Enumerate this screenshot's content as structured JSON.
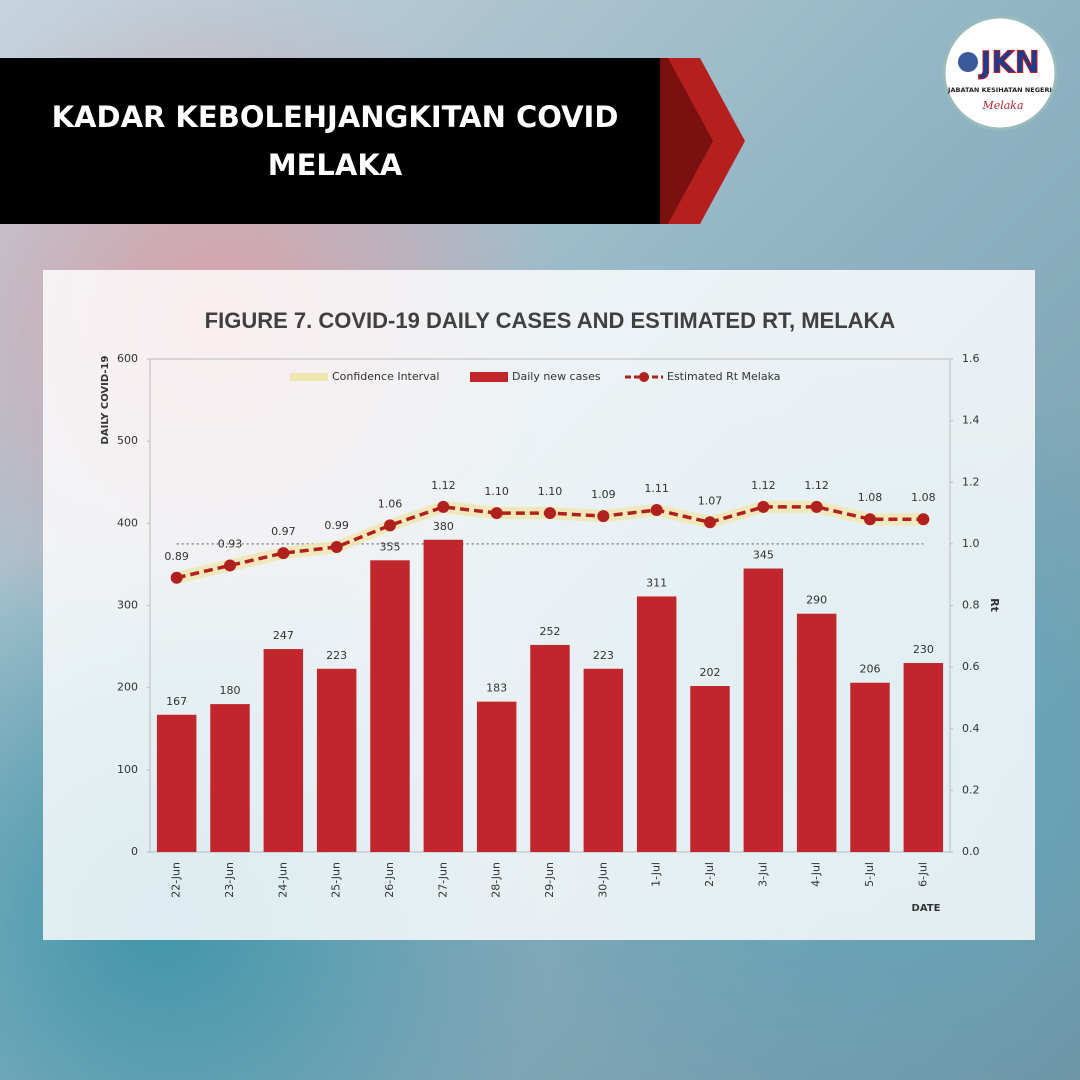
{
  "header": {
    "title": "KADAR KEBOLEHJANGKITAN COVID MELAKA"
  },
  "logo": {
    "text": "JKN",
    "subtitle": "JABATAN KESIHATAN NEGERI",
    "signature": "Melaka"
  },
  "chart_data": {
    "type": "bar",
    "title": "FIGURE 7. COVID-19 DAILY CASES AND ESTIMATED RT, MELAKA",
    "y_label": "DAILY COVID-19",
    "y2_label": "Rt",
    "x_label": "DATE",
    "categories": [
      "22-Jun",
      "23-Jun",
      "24-Jun",
      "25-Jun",
      "26-Jun",
      "27-Jun",
      "28-Jun",
      "29-Jun",
      "30-Jun",
      "1-Jul",
      "2-Jul",
      "3-Jul",
      "4-Jul",
      "5-Jul",
      "6-Jul"
    ],
    "series": [
      {
        "name": "Confidence Interval",
        "type": "band",
        "axis": "y2",
        "color": "#f0e6b0",
        "upper": [
          0.91,
          0.95,
          0.99,
          1.01,
          1.08,
          1.14,
          1.12,
          1.12,
          1.11,
          1.13,
          1.09,
          1.14,
          1.14,
          1.1,
          1.1
        ],
        "lower": [
          0.87,
          0.91,
          0.95,
          0.97,
          1.04,
          1.1,
          1.08,
          1.08,
          1.07,
          1.09,
          1.05,
          1.1,
          1.1,
          1.06,
          1.06
        ]
      },
      {
        "name": "Daily new cases",
        "type": "bar",
        "color": "#c0262b",
        "values": [
          167,
          180,
          247,
          223,
          355,
          380,
          183,
          252,
          223,
          311,
          202,
          345,
          290,
          206,
          230
        ]
      },
      {
        "name": "Estimated Rt Melaka",
        "type": "line",
        "axis": "y2",
        "color": "#b0201f",
        "values": [
          0.89,
          0.93,
          0.97,
          0.99,
          1.06,
          1.12,
          1.1,
          1.1,
          1.09,
          1.11,
          1.07,
          1.12,
          1.12,
          1.08,
          1.08
        ],
        "value_labels": [
          "0.89",
          "0.93",
          "0.97",
          "0.99",
          "1.06",
          "1.12",
          "1.10",
          "1.10",
          "1.09",
          "1.11",
          "1.07",
          "1.12",
          "1.12",
          "1.08",
          "1.08"
        ]
      }
    ],
    "reference_line": {
      "axis": "y2",
      "value": 1
    },
    "ylim": [
      0,
      600
    ],
    "yticks": [
      0,
      100,
      200,
      300,
      400,
      500,
      600
    ],
    "y2lim": [
      0,
      1.6
    ],
    "y2ticks": [
      {
        "value": 0,
        "label": "0.0"
      },
      0.2,
      0.4,
      0.6,
      0.8,
      {
        "value": 1,
        "label": "1.0"
      },
      1.2,
      1.4,
      1.6
    ]
  }
}
